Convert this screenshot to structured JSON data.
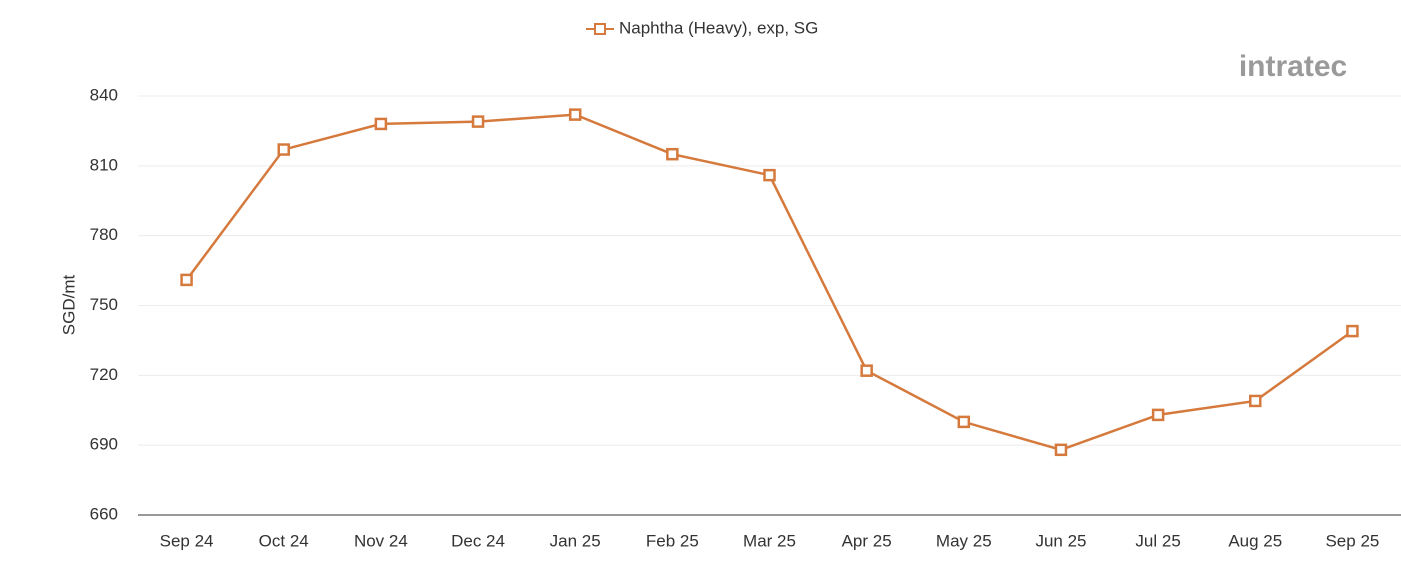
{
  "chart_data": {
    "type": "line",
    "logo": "intratec",
    "y_label": "SGD/mt",
    "categories": [
      "Sep 24",
      "Oct 24",
      "Nov 24",
      "Dec 24",
      "Jan 25",
      "Feb 25",
      "Mar 25",
      "Apr 25",
      "May 25",
      "Jun 25",
      "Jul 25",
      "Aug 25",
      "Sep 25"
    ],
    "series": [
      {
        "name": "Naphtha (Heavy), exp, SG",
        "color": "#d57a3c",
        "values": [
          761,
          817,
          828,
          829,
          832,
          815,
          806,
          722,
          700,
          688,
          703,
          709,
          739
        ]
      }
    ],
    "ylim": [
      660,
      840
    ],
    "yticks": [
      660,
      690,
      720,
      750,
      780,
      810,
      840
    ],
    "grid": true,
    "legend": "top"
  }
}
